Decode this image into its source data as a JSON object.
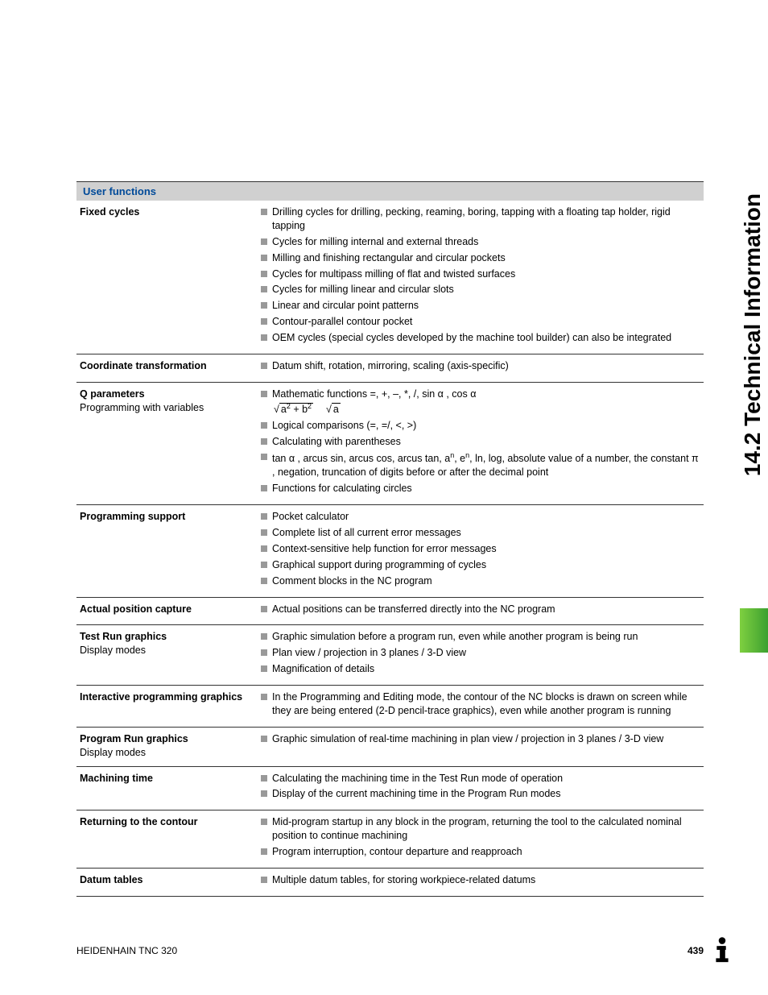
{
  "side_heading": "14.2 Technical Information",
  "section_title": "User functions",
  "rows": [
    {
      "label_bold": "Fixed cycles",
      "label_normal": "",
      "items": [
        "Drilling cycles for drilling, pecking, reaming, boring, tapping with a floating tap holder, rigid tapping",
        "Cycles for milling internal and external threads",
        "Milling and finishing rectangular and circular pockets",
        "Cycles for multipass milling of flat and twisted surfaces",
        "Cycles for milling linear and circular slots",
        "Linear and circular point patterns",
        "Contour-parallel contour pocket",
        "OEM cycles (special cycles developed by the machine tool builder) can also be integrated"
      ]
    },
    {
      "label_bold": "Coordinate transformation",
      "label_normal": "",
      "items": [
        "Datum shift, rotation, mirroring, scaling (axis-specific)"
      ]
    },
    {
      "label_bold": "Q parameters",
      "label_normal": "Programming with variables",
      "items": [
        "__MATH__",
        "Logical comparisons (=, =/, <, >)",
        "Calculating with parentheses",
        "__TRIG__",
        "Functions for calculating circles"
      ]
    },
    {
      "label_bold": "Programming support",
      "label_normal": "",
      "items": [
        "Pocket calculator",
        "Complete list of all current error messages",
        "Context-sensitive help function for error messages",
        "Graphical support during programming of cycles",
        "Comment blocks in the NC program"
      ]
    },
    {
      "label_bold": "Actual position capture",
      "label_normal": "",
      "items": [
        "Actual positions can be transferred directly into the NC program"
      ]
    },
    {
      "label_bold": "Test Run graphics",
      "label_normal": "Display modes",
      "items": [
        "Graphic simulation before a program run, even while another program is being run",
        "Plan view / projection in 3 planes / 3-D view",
        "Magnification of details"
      ]
    },
    {
      "label_bold": "Interactive programming graphics",
      "label_normal": "",
      "items": [
        "In the Programming and Editing mode, the contour of the NC blocks is drawn on screen while they are being entered (2-D pencil-trace graphics), even while another program is running"
      ]
    },
    {
      "label_bold": "Program Run graphics",
      "label_normal": "Display modes",
      "items": [
        "Graphic simulation of real-time machining in plan view / projection in 3 planes / 3-D view"
      ]
    },
    {
      "label_bold": "Machining time",
      "label_normal": "",
      "items": [
        "Calculating the machining time in the Test Run mode of operation",
        "Display of the current machining time in the Program Run modes"
      ]
    },
    {
      "label_bold": "Returning to the contour",
      "label_normal": "",
      "items": [
        "Mid-program startup in any block in the program, returning the tool to the calculated nominal position to continue machining",
        "Program interruption, contour departure and reapproach"
      ]
    },
    {
      "label_bold": "Datum tables",
      "label_normal": "",
      "items": [
        "Multiple datum tables, for storing workpiece-related datums"
      ]
    }
  ],
  "math_text_prefix": "Mathematic functions =, +, –, *, /, sin α , cos α",
  "trig_text": "tan α , arcus sin, arcus cos, arcus tan, a",
  "trig_text2": ", e",
  "trig_text3": ", ln, log, absolute value of a number, the constant π , negation, truncation of digits before or after the decimal point",
  "footer_left": "HEIDENHAIN TNC 320",
  "footer_page": "439",
  "colors": {
    "header_bg": "#d0d0d0",
    "header_text": "#004a99",
    "bullet": "#999999",
    "green1": "#7fd040",
    "green2": "#3ca030"
  }
}
